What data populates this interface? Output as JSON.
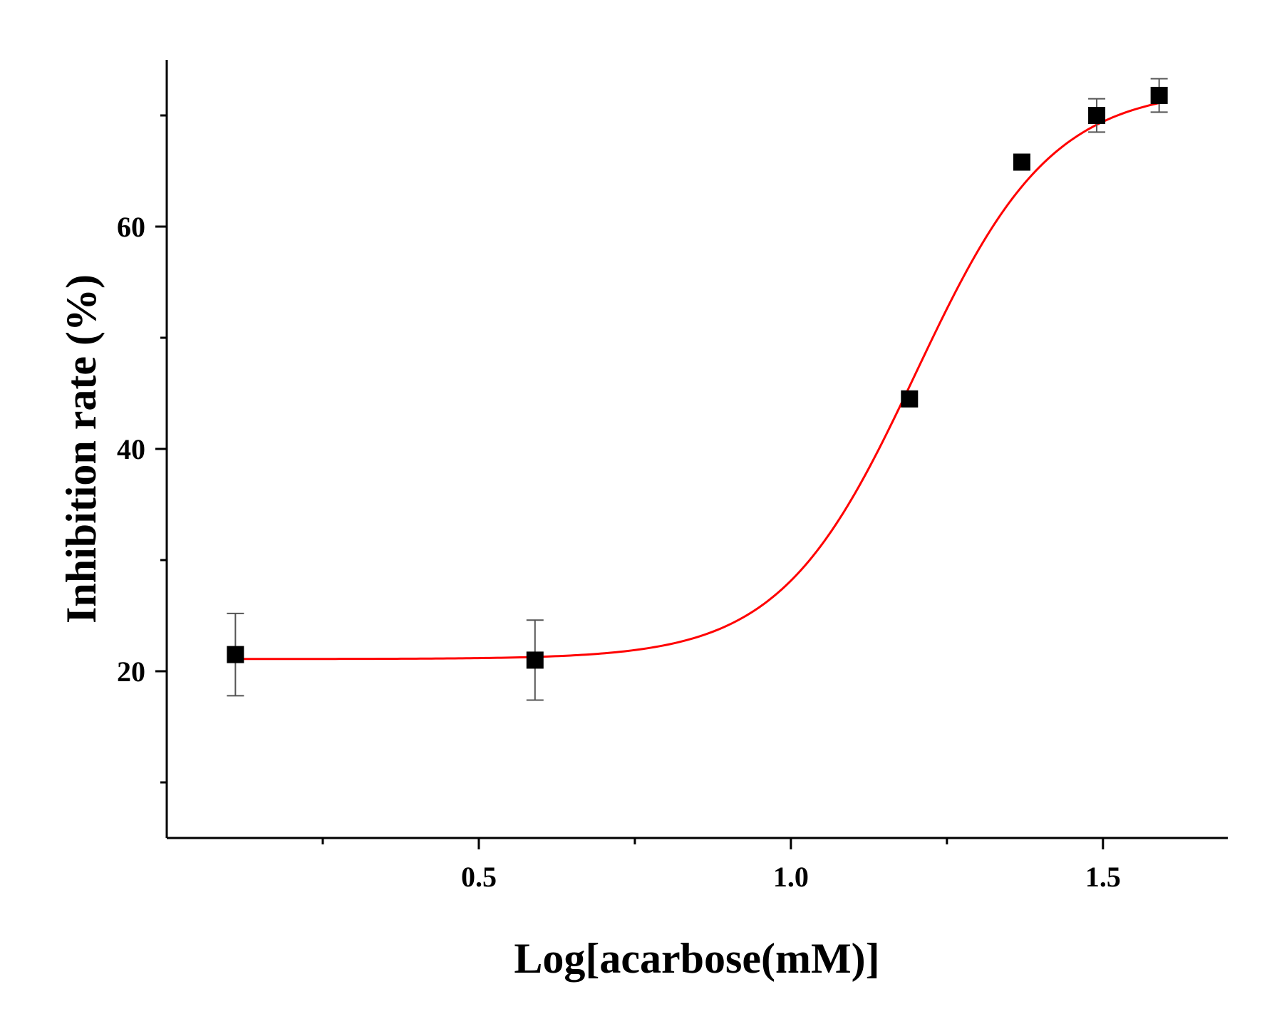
{
  "chart_data": {
    "type": "scatter",
    "xlabel": "Log[acarbose(mM)]",
    "ylabel": "Inhibition rate (%)",
    "xlim": [
      0.0,
      1.7
    ],
    "ylim": [
      5,
      75
    ],
    "x_ticks": [
      {
        "value": 0.5,
        "label": "0.5"
      },
      {
        "value": 1.0,
        "label": "1.0"
      },
      {
        "value": 1.5,
        "label": "1.5"
      }
    ],
    "x_minor_ticks": [
      0.25,
      0.75,
      1.25
    ],
    "y_ticks": [
      {
        "value": 20,
        "label": "20"
      },
      {
        "value": 40,
        "label": "40"
      },
      {
        "value": 60,
        "label": "60"
      }
    ],
    "y_minor_ticks": [
      10,
      30,
      50,
      70
    ],
    "series": [
      {
        "points": [
          {
            "x": 0.11,
            "y": 21.5,
            "err": 3.7
          },
          {
            "x": 0.59,
            "y": 21.0,
            "err": 3.6
          },
          {
            "x": 1.19,
            "y": 44.5,
            "err": 0
          },
          {
            "x": 1.37,
            "y": 65.8,
            "err": 0
          },
          {
            "x": 1.49,
            "y": 70.0,
            "err": 1.5
          },
          {
            "x": 1.59,
            "y": 71.8,
            "err": 1.5
          }
        ],
        "marker_color": "#000000",
        "marker": "square"
      }
    ],
    "fit": {
      "model": "logistic",
      "bottom": 21.1,
      "top": 72.5,
      "x0": 1.2,
      "hill": 9.2,
      "color": "#ff0000"
    },
    "grid": false
  }
}
